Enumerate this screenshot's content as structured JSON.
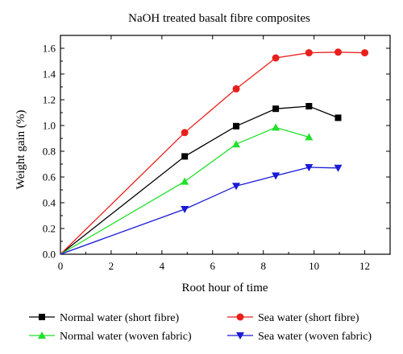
{
  "chart_data": {
    "type": "line",
    "title": "NaOH treated basalt fibre composites",
    "xlabel": "Root hour of time",
    "ylabel": "Weight gain (%)",
    "xlim": [
      0,
      13
    ],
    "ylim": [
      0,
      1.7
    ],
    "x_ticks": [
      0,
      2,
      4,
      6,
      8,
      10,
      12
    ],
    "x_tick_labels": [
      "0",
      "2",
      "4",
      "6",
      "8",
      "10",
      "12"
    ],
    "y_ticks": [
      0,
      0.2,
      0.4,
      0.6,
      0.8,
      1.0,
      1.2,
      1.4,
      1.6
    ],
    "y_tick_labels": [
      "0.0",
      "0.2",
      "0.4",
      "0.6",
      "0.8",
      "1.0",
      "1.2",
      "1.4",
      "1.6"
    ],
    "grid": false,
    "legend_position": "bottom",
    "series": [
      {
        "name": "Normal water (short fibre)",
        "color": "#000000",
        "marker": "square",
        "x": [
          0,
          4.9,
          6.93,
          8.49,
          9.8,
          10.95
        ],
        "y": [
          0,
          0.76,
          0.995,
          1.13,
          1.15,
          1.06
        ]
      },
      {
        "name": "Sea water (short fibre)",
        "color": "#e8201c",
        "marker": "circle",
        "x": [
          0,
          4.9,
          6.93,
          8.49,
          9.8,
          10.95,
          12.0
        ],
        "y": [
          0,
          0.945,
          1.285,
          1.525,
          1.565,
          1.57,
          1.565
        ]
      },
      {
        "name": "Normal water (woven fabric)",
        "color": "#22e02c",
        "marker": "triangle-up",
        "x": [
          0,
          4.9,
          6.93,
          8.49,
          9.8
        ],
        "y": [
          0,
          0.565,
          0.855,
          0.985,
          0.91
        ]
      },
      {
        "name": "Sea water (woven fabric)",
        "color": "#1a1ad6",
        "marker": "triangle-down",
        "x": [
          0,
          4.9,
          6.93,
          8.49,
          9.8,
          10.95
        ],
        "y": [
          0,
          0.35,
          0.53,
          0.61,
          0.675,
          0.67
        ]
      }
    ]
  }
}
